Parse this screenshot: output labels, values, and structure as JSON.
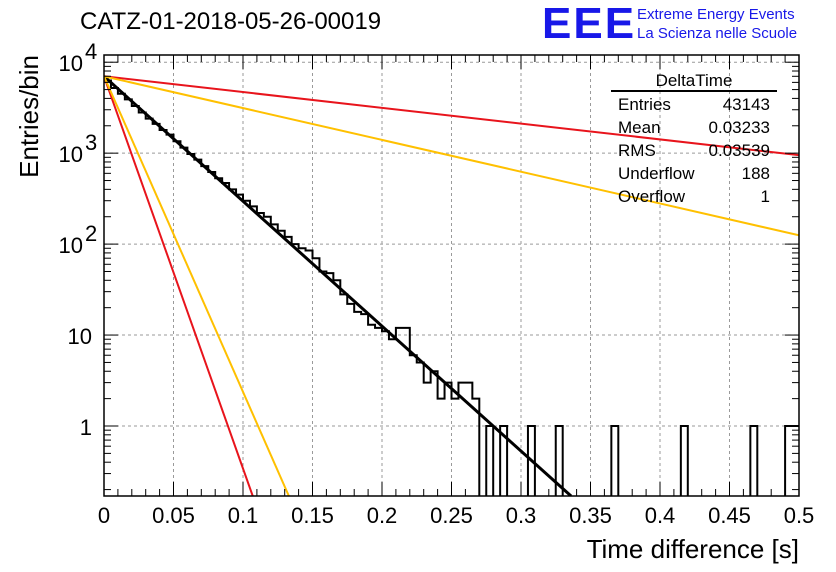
{
  "chart_data": {
    "type": "line",
    "title": "CATZ-01-2018-05-26-00019",
    "xlabel": "Time difference [s]",
    "ylabel": "Entries/bin",
    "xlim": [
      0,
      0.5
    ],
    "ylim": [
      0.17,
      12000
    ],
    "yscale": "log",
    "grid": true,
    "x_ticks": [
      "0",
      "0.05",
      "0.1",
      "0.15",
      "0.2",
      "0.25",
      "0.3",
      "0.35",
      "0.4",
      "0.45",
      "0.5"
    ],
    "y_ticks": [
      {
        "value": 1,
        "label": "1"
      },
      {
        "value": 10,
        "label": "10"
      },
      {
        "value": 100,
        "label": "10",
        "exp": "2"
      },
      {
        "value": 1000,
        "label": "10",
        "exp": "3"
      },
      {
        "value": 10000,
        "label": "10",
        "exp": "4"
      }
    ],
    "histogram": {
      "bin_width": 0.005,
      "counts": [
        6300,
        5200,
        4500,
        3900,
        3300,
        2800,
        2400,
        2100,
        1800,
        1600,
        1350,
        1150,
        980,
        850,
        720,
        620,
        530,
        470,
        400,
        350,
        300,
        260,
        220,
        200,
        165,
        140,
        120,
        100,
        90,
        85,
        70,
        50,
        48,
        40,
        28,
        22,
        18,
        17,
        13,
        12,
        11,
        9,
        12,
        12,
        6,
        5,
        3,
        4,
        2,
        3,
        2,
        3,
        3,
        2,
        0,
        1,
        0,
        1,
        0,
        0,
        0,
        1,
        0,
        0,
        0,
        1,
        0,
        0,
        0,
        0,
        0,
        0,
        0,
        1,
        0,
        0,
        0,
        0,
        0,
        0,
        0,
        0,
        0,
        1,
        0,
        0,
        0,
        0,
        0,
        0,
        0,
        0,
        0,
        1,
        0,
        0,
        0,
        0,
        1,
        1
      ]
    },
    "fits": [
      {
        "color": "#000000",
        "x": [
          0,
          0.336
        ],
        "y": [
          7000,
          0.17
        ]
      },
      {
        "color": "#e8141c",
        "x": [
          0,
          0.5
        ],
        "y": [
          7000,
          950
        ]
      },
      {
        "color": "#e8141c",
        "x": [
          0,
          0.107
        ],
        "y": [
          7000,
          0.17
        ]
      },
      {
        "color": "#ffc000",
        "x": [
          0,
          0.5
        ],
        "y": [
          7000,
          125
        ]
      },
      {
        "color": "#ffc000",
        "x": [
          0,
          0.133
        ],
        "y": [
          7000,
          0.17
        ]
      }
    ],
    "stats_box": {
      "title": "DeltaTime",
      "rows": [
        {
          "label": "Entries",
          "value": "43143"
        },
        {
          "label": "Mean",
          "value": "0.03233"
        },
        {
          "label": "RMS",
          "value": "0.03539"
        },
        {
          "label": "Underflow",
          "value": "188"
        },
        {
          "label": "Overflow",
          "value": "1"
        }
      ]
    }
  },
  "logo": {
    "mark": "EEE",
    "line1": "Extreme Energy Events",
    "line2": "La Scienza nelle Scuole"
  }
}
